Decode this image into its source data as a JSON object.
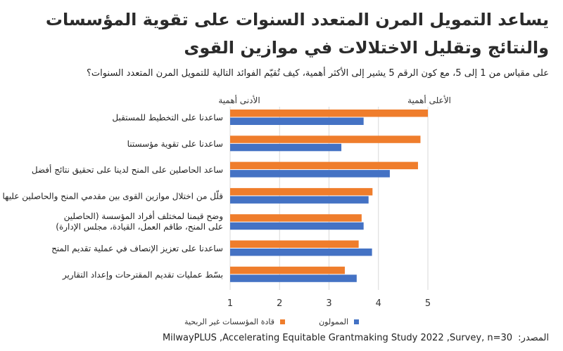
{
  "title_lines": [
    "يساعد التمويل المرن المتعدد السنوات على تقوية المؤسسات",
    "والنتائج وتقليل الاختلالات في موازين القوى"
  ],
  "subtitle": "على مقياس من 1 إلى 5، مع كون الرقم 5 يشير إلى الأكثر أهمية، كيف تُقيّم الفوائد التالية للتمويل المرن المتعدد السنوات؟",
  "scale_labels": {
    "low": "الأدنى أهمية",
    "high": "الأعلى أهمية"
  },
  "source_label": "المصدر:",
  "source_text": "MilwayPLUS ,Accelerating Equitable Grantmaking Study 2022 ,Survey, n=30",
  "colors": {
    "orange": "#ef7d2c",
    "blue": "#4472c4",
    "grid": "#d9d9d9"
  },
  "chart_data": {
    "type": "bar",
    "orientation": "horizontal",
    "categories": [
      [
        "ساعدنا على التخطيط للمستقبل"
      ],
      [
        "ساعدنا على تقوية مؤسستنا"
      ],
      [
        "ساعد الحاصلين على المنح لدينا على تحقيق نتائج أفضل"
      ],
      [
        "قلّل من اختلال موازين القوى بين مقدمي المنح والحاصلين عليها"
      ],
      [
        "وضح قيمنا لمختلف أفراد المؤسسة (الحاصلين",
        "على المنح، طاقم العمل، القيادة، مجلس الإدارة)"
      ],
      [
        "ساعدنا على تعزيز الإنصاف في عملية تقديم المنح"
      ],
      [
        "بسّط عمليات تقديم المقترحات وإعداد التقارير"
      ]
    ],
    "series": [
      {
        "name": "قادة المؤسسات غير الربحية",
        "color": "#ef7d2c",
        "values": [
          5.0,
          4.85,
          4.8,
          3.88,
          3.66,
          3.6,
          3.32
        ]
      },
      {
        "name": "الممولون",
        "color": "#4472c4",
        "values": [
          3.7,
          3.25,
          4.23,
          3.8,
          3.7,
          3.87,
          3.56
        ]
      }
    ],
    "xlim": [
      1,
      5
    ],
    "xticks": [
      1,
      2,
      3,
      4,
      5
    ],
    "grid": true,
    "legend_position": "bottom"
  }
}
